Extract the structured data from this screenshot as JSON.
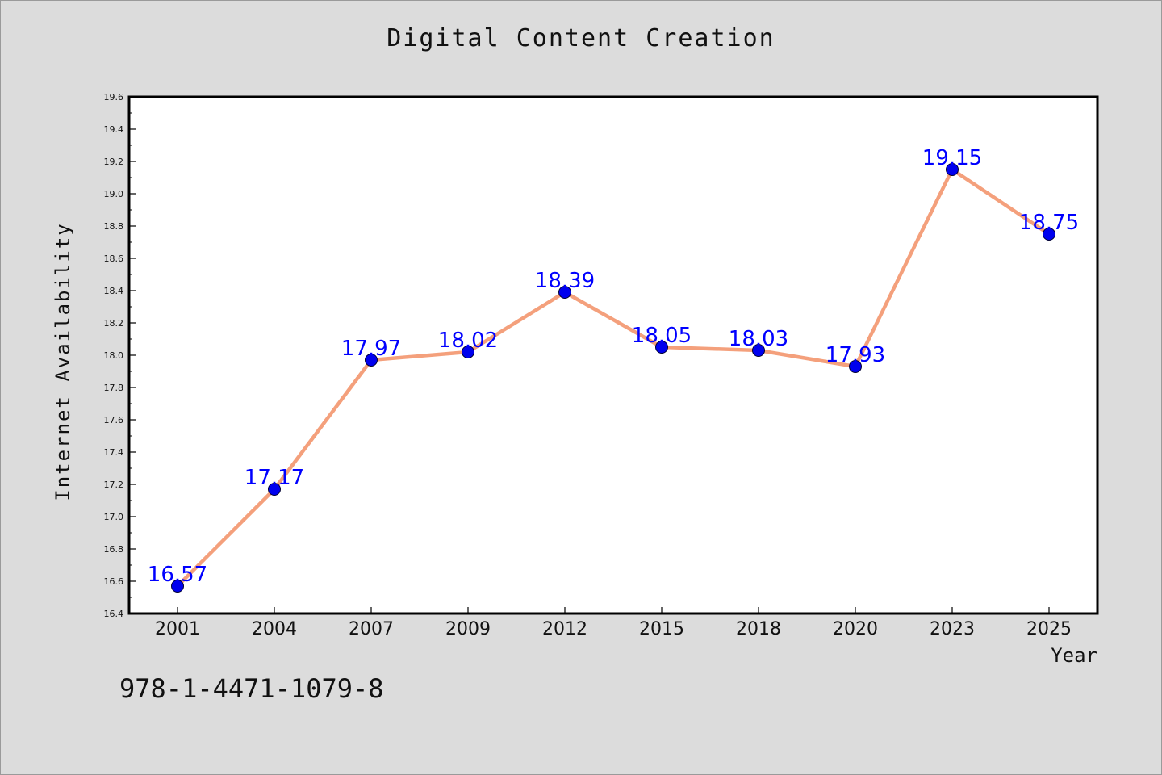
{
  "page": {
    "title": "Digital Content Creation",
    "footer_code": "978-1-4471-1079-8"
  },
  "colors": {
    "background": "#dcdcdc",
    "plot_background": "#ffffff",
    "line": "#f4a07c",
    "marker": "#0000ee",
    "data_label": "#0000ff"
  },
  "chart_data": {
    "type": "line",
    "title": "Digital Content Creation",
    "xlabel": "Year",
    "ylabel": "Internet Availability",
    "categories": [
      "2001",
      "2004",
      "2007",
      "2009",
      "2012",
      "2015",
      "2018",
      "2020",
      "2023",
      "2025"
    ],
    "values": [
      16.57,
      17.17,
      17.97,
      18.02,
      18.39,
      18.05,
      18.03,
      17.93,
      19.15,
      18.75
    ],
    "data_labels": [
      "16.57",
      "17.17",
      "17.97",
      "18.02",
      "18.39",
      "18.05",
      "18.03",
      "17.93",
      "19.15",
      "18.75"
    ],
    "ylim": [
      16.4,
      19.6
    ],
    "yticks": [
      "16.4",
      "16.6",
      "16.8",
      "17.0",
      "17.2",
      "17.4",
      "17.6",
      "17.8",
      "18.0",
      "18.2",
      "18.4",
      "18.6",
      "18.8",
      "19.0",
      "19.2",
      "19.4",
      "19.6"
    ],
    "grid": false,
    "legend": "none"
  }
}
